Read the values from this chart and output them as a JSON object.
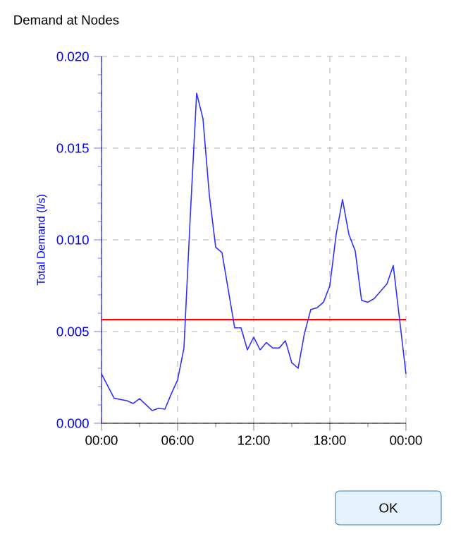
{
  "chart_data": {
    "type": "line",
    "title": "Demand at Nodes",
    "ylabel": "Total Demand (l/s)",
    "x": [
      0,
      1,
      2,
      2.5,
      3,
      4,
      4.5,
      5,
      5.5,
      6,
      6.5,
      7,
      7.5,
      8,
      8.5,
      9,
      9.5,
      10.5,
      11,
      11.5,
      12,
      12.5,
      13,
      13.5,
      14,
      14.5,
      15,
      15.5,
      16,
      16.5,
      17,
      17.5,
      18,
      18.5,
      19,
      19.5,
      20,
      20.5,
      21,
      21.5,
      22,
      22.5,
      23,
      24
    ],
    "series": [
      {
        "color": "#3030ff",
        "values": [
          0.0027,
          0.00136,
          0.00123,
          0.00108,
          0.00134,
          0.00069,
          0.00082,
          0.00077,
          0.0016,
          0.00236,
          0.0041,
          0.0113,
          0.018,
          0.0166,
          0.01245,
          0.0096,
          0.0093,
          0.0052,
          0.0052,
          0.004,
          0.0047,
          0.004,
          0.0044,
          0.0041,
          0.0041,
          0.0045,
          0.0033,
          0.003,
          0.0049,
          0.0062,
          0.0063,
          0.0066,
          0.0075,
          0.0103,
          0.0122,
          0.0103,
          0.0094,
          0.0067,
          0.0066,
          0.0068,
          0.0072,
          0.0076,
          0.0086,
          0.0027
        ]
      }
    ],
    "xlim": [
      0,
      24
    ],
    "ylim": [
      0,
      0.02
    ],
    "xticks": [
      {
        "value": 0,
        "label": "00:00"
      },
      {
        "value": 3,
        "label": null
      },
      {
        "value": 6,
        "label": "06:00"
      },
      {
        "value": 9,
        "label": null
      },
      {
        "value": 12,
        "label": "12:00"
      },
      {
        "value": 15,
        "label": null
      },
      {
        "value": 18,
        "label": "18:00"
      },
      {
        "value": 21,
        "label": null
      },
      {
        "value": 24,
        "label": "00:00"
      }
    ],
    "yticks": [
      {
        "value": 0,
        "label": "0.000"
      },
      {
        "value": 0.005,
        "label": "0.005"
      },
      {
        "value": 0.01,
        "label": "0.010"
      },
      {
        "value": 0.015,
        "label": "0.015"
      },
      {
        "value": 0.02,
        "label": "0.020"
      }
    ],
    "ref_lines": [
      {
        "axis": "y",
        "value": 0.00565,
        "color": "#ff0000"
      }
    ],
    "grid": true,
    "marker": "none",
    "line_style": "solid",
    "annotations": [
      "OK"
    ]
  }
}
